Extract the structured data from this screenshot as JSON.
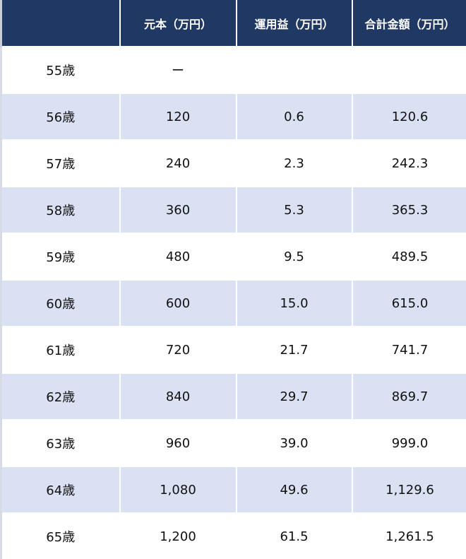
{
  "headers": [
    "",
    "元本（万円）",
    "運用益（万円）",
    "合計金額（万円）"
  ],
  "rows": [
    [
      "55歳",
      "ー",
      "",
      ""
    ],
    [
      "56歳",
      "120",
      "0.6",
      "120.6"
    ],
    [
      "57歳",
      "240",
      "2.3",
      "242.3"
    ],
    [
      "58歳",
      "360",
      "5.3",
      "365.3"
    ],
    [
      "59歳",
      "480",
      "9.5",
      "489.5"
    ],
    [
      "60歳",
      "600",
      "15.0",
      "615.0"
    ],
    [
      "61歳",
      "720",
      "21.7",
      "741.7"
    ],
    [
      "62歳",
      "840",
      "29.7",
      "869.7"
    ],
    [
      "63歳",
      "960",
      "39.0",
      "999.0"
    ],
    [
      "64歳",
      "1,080",
      "49.6",
      "1,129.6"
    ],
    [
      "65歳",
      "1,200",
      "61.5",
      "1,261.5"
    ]
  ],
  "colors": {
    "header_bg": "#1f3864",
    "alt_row_bg": "#d9e1f2"
  }
}
